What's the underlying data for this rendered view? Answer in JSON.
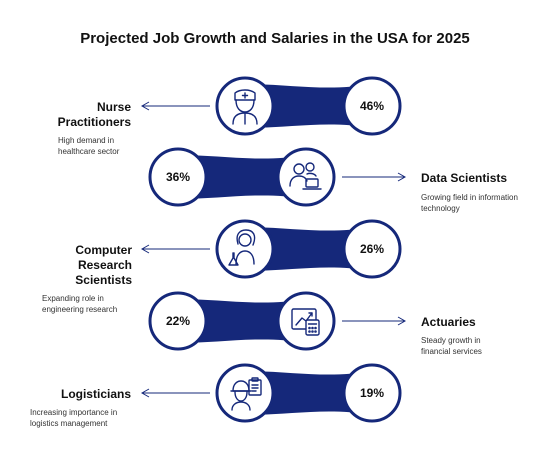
{
  "title": "Projected Job Growth and Salaries in the USA for 2025",
  "accent_color": "#15287a",
  "rows": [
    {
      "title": "Nurse Practitioners",
      "description": "High demand in healthcare sector",
      "growth": "46%",
      "icon": "nurse-icon",
      "side": "left"
    },
    {
      "title": "Data Scientists",
      "description": "Growing field in information technology",
      "growth": "36%",
      "icon": "data-scientist-icon",
      "side": "right"
    },
    {
      "title": "Computer Research Scientists",
      "description": "Expanding role in engineering research",
      "growth": "26%",
      "icon": "scientist-icon",
      "side": "left"
    },
    {
      "title": "Actuaries",
      "description": "Steady growth in financial services",
      "growth": "22%",
      "icon": "calculator-chart-icon",
      "side": "right"
    },
    {
      "title": "Logisticians",
      "description": "Increasing importance in logistics management",
      "growth": "19%",
      "icon": "logistician-icon",
      "side": "left"
    }
  ]
}
